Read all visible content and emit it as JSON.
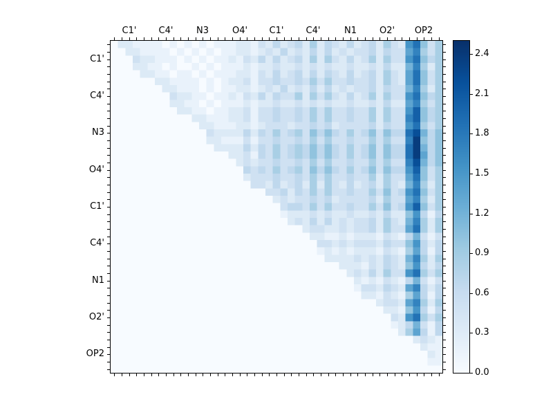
{
  "chart_data": {
    "type": "heatmap",
    "title": "",
    "x_tick_labels": [
      "C1'",
      "C4'",
      "N3",
      "O4'",
      "C1'",
      "C4'",
      "N1",
      "O2'",
      "OP2"
    ],
    "y_tick_labels": [
      "C1'",
      "C4'",
      "N3",
      "O4'",
      "C1'",
      "C4'",
      "N1",
      "O2'",
      "OP2"
    ],
    "grid_size": 45,
    "cells_per_label": 5,
    "vmin": 0.0,
    "vmax": 2.5,
    "colormap": "Blues",
    "grid": false,
    "note": "Upper-triangular pairwise matrix; lower triangle is zero (white). Strong dark-blue vertical stripes in the OP2 columns, maximum ~2.4 around the N3/O4' rows.",
    "value_encoding": "Each row is 9 groups of 5 hex digits (45 cells). Cell value = hexDigit * value_scale. Lower triangle is zero.",
    "value_scale": 0.17,
    "colorbar": {
      "tick_values": [
        0.0,
        0.3,
        0.6,
        0.9,
        1.2,
        1.5,
        1.8,
        2.1,
        2.4
      ],
      "tick_labels": [
        "0.0",
        "0.3",
        "0.6",
        "0.9",
        "1.2",
        "1.5",
        "1.8",
        "2.1",
        "2.4"
      ]
    },
    "colormap_stops": [
      [
        0.0,
        [
          247,
          251,
          255
        ]
      ],
      [
        0.125,
        [
          222,
          235,
          247
        ]
      ],
      [
        0.25,
        [
          198,
          219,
          239
        ]
      ],
      [
        0.375,
        [
          158,
          202,
          225
        ]
      ],
      [
        0.5,
        [
          107,
          174,
          214
        ]
      ],
      [
        0.625,
        [
          66,
          146,
          198
        ]
      ],
      [
        0.75,
        [
          33,
          113,
          181
        ]
      ],
      [
        0.875,
        [
          8,
          81,
          156
        ]
      ],
      [
        1.0,
        [
          8,
          48,
          107
        ]
      ]
    ],
    "rows": [
      [
        "02211",
        "11010",
        "10101",
        "11221",
        "32423",
        "42524",
        "32423",
        "42532",
        "9b635"
      ],
      [
        "00221",
        "11101",
        "01010",
        "11221",
        "23242",
        "32424",
        "23233",
        "42433",
        "8a535"
      ],
      [
        "00032",
        "21110",
        "10101",
        "12132",
        "42423",
        "42525",
        "32423",
        "52533",
        "9b645"
      ],
      [
        "00022",
        "11010",
        "01010",
        "11121",
        "22322",
        "32323",
        "22322",
        "32422",
        "7a525"
      ],
      [
        "00002",
        "21101",
        "10101",
        "11221",
        "32423",
        "42424",
        "32423",
        "42532",
        "8b635"
      ],
      [
        "00000",
        "02211",
        "11010",
        "12231",
        "33433",
        "43535",
        "33433",
        "42532",
        "8b635"
      ],
      [
        "00000",
        "00221",
        "11010",
        "11221",
        "23242",
        "32424",
        "23233",
        "42433",
        "7a525"
      ],
      [
        "00000",
        "00032",
        "21101",
        "12132",
        "42433",
        "52535",
        "32423",
        "52533",
        "9b645"
      ],
      [
        "00000",
        "00022",
        "11010",
        "11121",
        "22322",
        "32323",
        "22322",
        "32422",
        "8a535"
      ],
      [
        "00000",
        "00002",
        "21101",
        "12231",
        "33433",
        "43535",
        "33433",
        "52533",
        "9c645"
      ],
      [
        "00000",
        "00000",
        "02211",
        "12231",
        "33433",
        "43535",
        "33433",
        "52533",
        "ac645"
      ],
      [
        "00000",
        "00000",
        "00221",
        "11221",
        "23332",
        "33434",
        "23333",
        "42433",
        "9b535"
      ],
      [
        "00000",
        "00000",
        "00032",
        "22242",
        "43534",
        "53646",
        "43534",
        "63644",
        "bd746"
      ],
      [
        "00000",
        "00000",
        "00022",
        "11131",
        "33433",
        "43535",
        "33433",
        "53533",
        "ae646"
      ],
      [
        "00000",
        "00000",
        "00002",
        "22242",
        "43534",
        "54646",
        "43534",
        "63644",
        "be746"
      ],
      [
        "00000",
        "00000",
        "00000",
        "02231",
        "43534",
        "54646",
        "43534",
        "63644",
        "be846"
      ],
      [
        "00000",
        "00000",
        "00000",
        "00232",
        "33433",
        "43535",
        "33433",
        "53533",
        "ad746"
      ],
      [
        "00000",
        "00000",
        "00000",
        "00043",
        "43534",
        "53646",
        "43534",
        "63644",
        "9c635"
      ],
      [
        "00000",
        "00000",
        "00000",
        "00023",
        "33433",
        "43535",
        "33433",
        "52533",
        "8b635"
      ],
      [
        "00000",
        "00000",
        "00000",
        "00003",
        "32423",
        "42525",
        "32423",
        "42532",
        "7a525"
      ],
      [
        "00000",
        "00000",
        "00000",
        "00000",
        "03342",
        "43535",
        "33433",
        "53634",
        "9b635"
      ],
      [
        "00000",
        "00000",
        "00000",
        "00000",
        "00232",
        "33434",
        "23333",
        "42533",
        "8a525"
      ],
      [
        "00000",
        "00000",
        "00000",
        "00000",
        "00034",
        "43535",
        "33433",
        "53634",
        "9c635"
      ],
      [
        "00000",
        "00000",
        "00000",
        "00000",
        "00012",
        "22323",
        "22322",
        "32422",
        "69414"
      ],
      [
        "00000",
        "00000",
        "00000",
        "00000",
        "00002",
        "32424",
        "23233",
        "42532",
        "7a525"
      ],
      [
        "00000",
        "00000",
        "00000",
        "00000",
        "00000",
        "02332",
        "23233",
        "42533",
        "8b525"
      ],
      [
        "00000",
        "00000",
        "00000",
        "00000",
        "00000",
        "00221",
        "12122",
        "21321",
        "47313"
      ],
      [
        "00000",
        "00000",
        "00000",
        "00000",
        "00000",
        "00033",
        "23233",
        "32433",
        "69424"
      ],
      [
        "00000",
        "00000",
        "00000",
        "00000",
        "00000",
        "00012",
        "12122",
        "21321",
        "58414"
      ],
      [
        "00000",
        "00000",
        "00000",
        "00000",
        "00000",
        "00002",
        "22232",
        "32432",
        "7a525"
      ],
      [
        "00000",
        "00000",
        "00000",
        "00000",
        "00000",
        "00000",
        "02221",
        "32432",
        "69424"
      ],
      [
        "00000",
        "00000",
        "00000",
        "00000",
        "00000",
        "00000",
        "00232",
        "42533",
        "9b535"
      ],
      [
        "00000",
        "00000",
        "00000",
        "00000",
        "00000",
        "00000",
        "00021",
        "21321",
        "47313"
      ],
      [
        "00000",
        "00000",
        "00000",
        "00000",
        "00000",
        "00000",
        "00013",
        "32432",
        "8a424"
      ],
      [
        "00000",
        "00000",
        "00000",
        "00000",
        "00000",
        "00000",
        "00002",
        "21321",
        "58414"
      ],
      [
        "00000",
        "00000",
        "00000",
        "00000",
        "00000",
        "00000",
        "00000",
        "02332",
        "8a525"
      ],
      [
        "00000",
        "00000",
        "00000",
        "00000",
        "00000",
        "00000",
        "00000",
        "00221",
        "69414"
      ],
      [
        "00000",
        "00000",
        "00000",
        "00000",
        "00000",
        "00000",
        "00000",
        "00032",
        "9b535"
      ],
      [
        "00000",
        "00000",
        "00000",
        "00000",
        "00000",
        "00000",
        "00000",
        "00012",
        "47314"
      ],
      [
        "00000",
        "00000",
        "00000",
        "00000",
        "00000",
        "00000",
        "00000",
        "00002",
        "58414"
      ],
      [
        "00000",
        "00000",
        "00000",
        "00000",
        "00000",
        "00000",
        "00000",
        "00000",
        "02321"
      ],
      [
        "00000",
        "00000",
        "00000",
        "00000",
        "00000",
        "00000",
        "00000",
        "00000",
        "00211"
      ],
      [
        "00000",
        "00000",
        "00000",
        "00000",
        "00000",
        "00000",
        "00000",
        "00000",
        "00021"
      ],
      [
        "00000",
        "00000",
        "00000",
        "00000",
        "00000",
        "00000",
        "00000",
        "00000",
        "00011"
      ],
      [
        "00000",
        "00000",
        "00000",
        "00000",
        "00000",
        "00000",
        "00000",
        "00000",
        "00000"
      ]
    ]
  }
}
